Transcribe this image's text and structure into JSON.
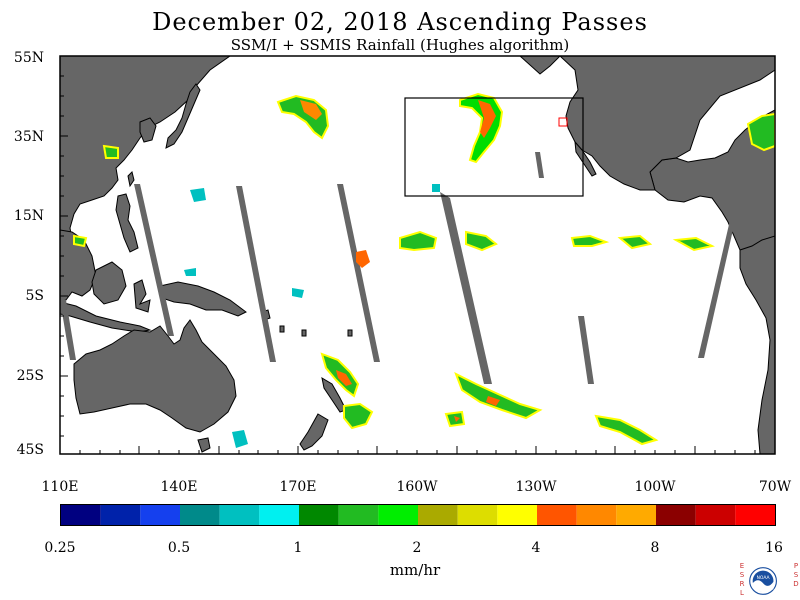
{
  "title": "December 02, 2018  Ascending Passes",
  "subtitle": "SSM/I + SSMIS Rainfall (Hughes algorithm)",
  "lat_labels": [
    "55N",
    "35N",
    "15N",
    "5S",
    "25S",
    "45S"
  ],
  "lon_labels": [
    "110E",
    "140E",
    "170E",
    "160W",
    "130W",
    "100W",
    "70W"
  ],
  "colorbar": {
    "colors": [
      "#000080",
      "#0022aa",
      "#1540ee",
      "#008a8a",
      "#00c0c0",
      "#00f0f0",
      "#008800",
      "#22bb22",
      "#00ee00",
      "#aaaa00",
      "#dddd00",
      "#ffff00",
      "#ff5500",
      "#ff8800",
      "#ffaa00",
      "#8b0000",
      "#cc0000",
      "#ff0000"
    ],
    "tick_labels": [
      "0.25",
      "0.5",
      "1",
      "2",
      "4",
      "8",
      "16"
    ],
    "units": "mm/hr"
  },
  "logo": {
    "text": "NOAA",
    "esrl": "ESRL",
    "psd": "PSD"
  },
  "colors": {
    "land": "#666666",
    "ocean": "#ffffff",
    "swath_gap": "#666666"
  }
}
